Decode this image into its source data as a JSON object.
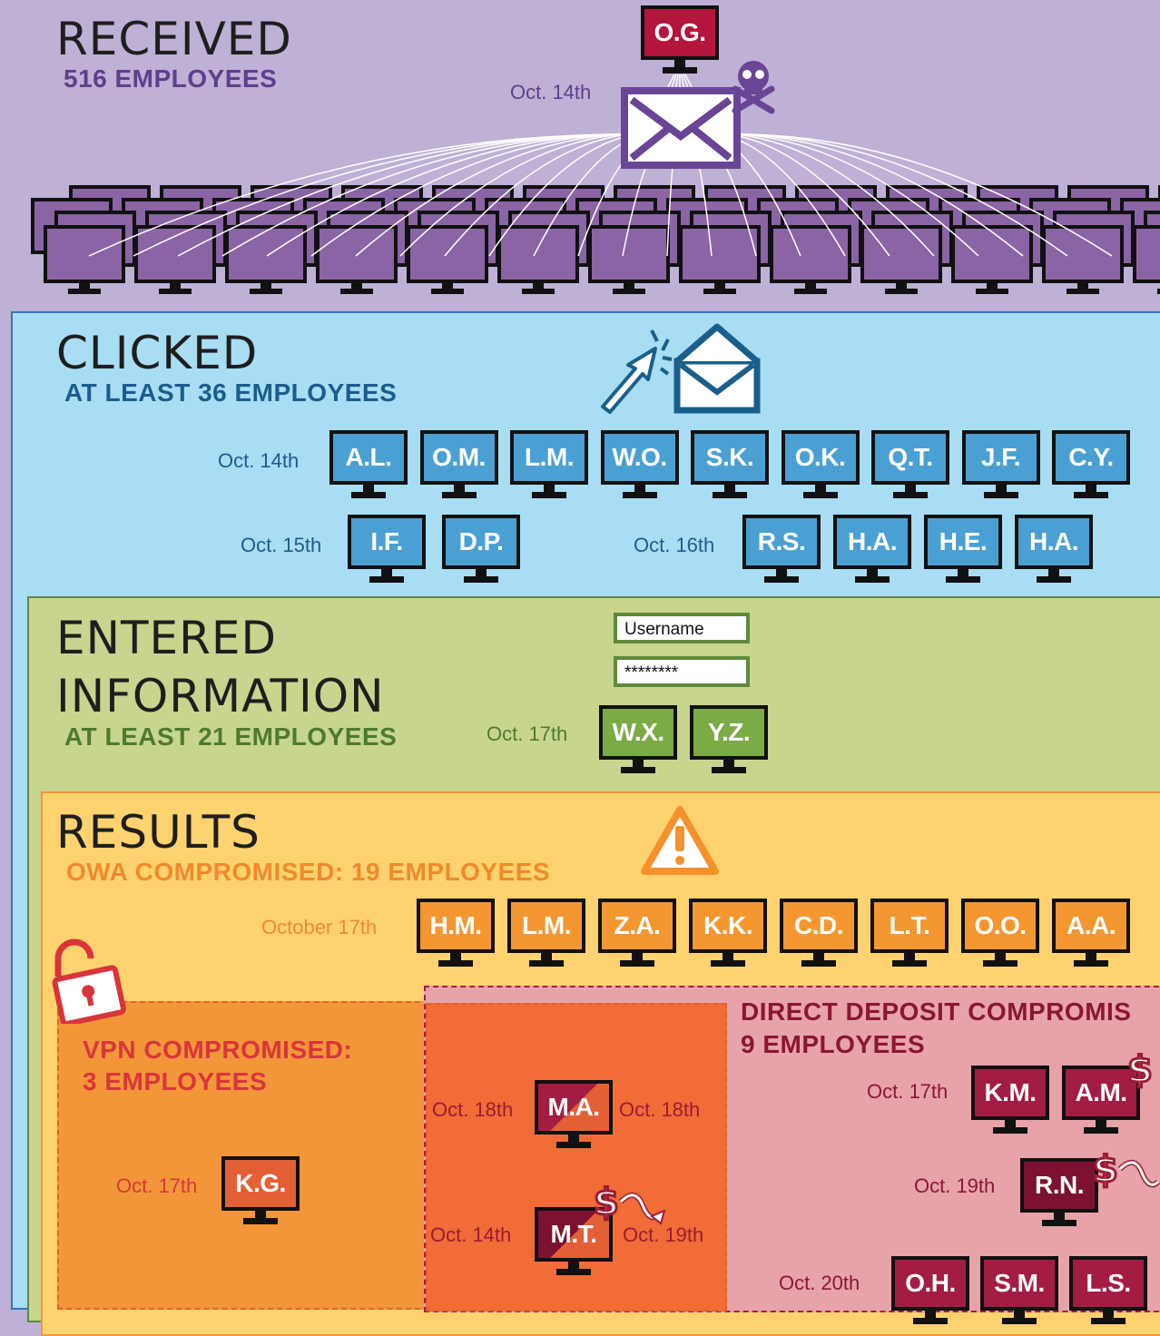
{
  "received": {
    "title": "RECEIVED",
    "subtitle": "516 EMPLOYEES",
    "sender": "O.G.",
    "date": "Oct. 14th"
  },
  "clicked": {
    "title": "CLICKED",
    "subtitle": "AT LEAST 36 EMPLOYEES",
    "row1": {
      "date": "Oct. 14th",
      "monitors": [
        "A.L.",
        "O.M.",
        "L.M.",
        "W.O.",
        "S.K.",
        "O.K.",
        "Q.T.",
        "J.F.",
        "C.Y."
      ]
    },
    "row2a": {
      "date": "Oct. 15th",
      "monitors": [
        "I.F.",
        "D.P."
      ]
    },
    "row2b": {
      "date": "Oct. 16th",
      "monitors": [
        "R.S.",
        "H.A.",
        "H.E.",
        "H.A."
      ]
    }
  },
  "entered": {
    "title_line1": "ENTERED",
    "title_line2": "INFORMATION",
    "subtitle": "AT LEAST 21 EMPLOYEES",
    "username_label": "Username",
    "password_mask": "********",
    "date": "Oct. 17th",
    "monitors": [
      "W.X.",
      "Y.Z."
    ]
  },
  "results": {
    "title": "RESULTS",
    "owa_subtitle": "OWA COMPROMISED: 19 EMPLOYEES",
    "owa_date": "October 17th",
    "owa_monitors": [
      "H.M.",
      "L.M.",
      "Z.A.",
      "K.K.",
      "C.D.",
      "L.T.",
      "O.O.",
      "A.A."
    ],
    "vpn": {
      "title_line1": "VPN COMPROMISED:",
      "title_line2": "3 EMPLOYEES",
      "date": "Oct. 17th",
      "monitor": "K.G."
    },
    "overlap": {
      "ma": {
        "left_date": "Oct. 18th",
        "name": "M.A.",
        "right_date": "Oct. 18th"
      },
      "mt": {
        "left_date": "Oct. 14th",
        "name": "M.T.",
        "right_date": "Oct. 19th"
      }
    },
    "direct_deposit": {
      "title_line1": "DIRECT DEPOSIT COMPROMIS",
      "title_line2": "9 EMPLOYEES",
      "row1": {
        "date": "Oct. 17th",
        "monitors": [
          "K.M.",
          "A.M."
        ]
      },
      "row2": {
        "date": "Oct. 19th",
        "monitors": [
          "R.N."
        ]
      },
      "row3": {
        "date": "Oct. 20th",
        "monitors": [
          "O.H.",
          "S.M.",
          "L.S."
        ]
      }
    }
  },
  "colors": {
    "received_bg": "#bfb0d6",
    "received_monitor": "#8a64a4",
    "clicked_bg": "#a9ddf3",
    "clicked_monitor": "#4aa0d3",
    "entered_bg": "#c7d58f",
    "entered_monitor": "#7aab45",
    "results_bg": "#fed26f",
    "owa_monitor": "#f49731",
    "vpn_bg": "#f39639",
    "overlap_bg": "#f16c36",
    "dd_bg": "#e7a3a9",
    "dd_monitor": "#a31d43",
    "sender_monitor": "#b4153c"
  }
}
